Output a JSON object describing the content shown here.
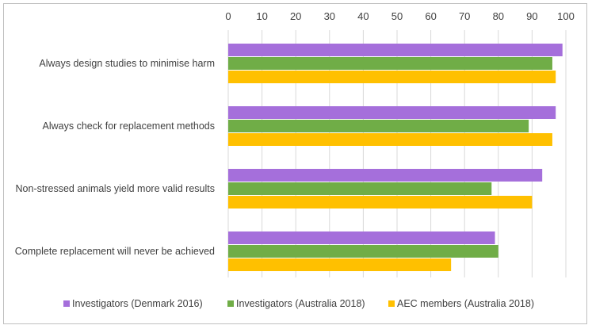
{
  "chart_data": {
    "type": "bar",
    "orientation": "horizontal",
    "categories": [
      "Always design studies to minimise harm",
      "Always check for replacement methods",
      "Non-stressed animals yield more valid results",
      "Complete replacement will never be achieved"
    ],
    "series": [
      {
        "name": "Investigators (Denmark 2016)",
        "color": "#a56fdb",
        "values": [
          99,
          97,
          93,
          79
        ]
      },
      {
        "name": "Investigators (Australia 2018)",
        "color": "#70ad47",
        "values": [
          96,
          89,
          78,
          80
        ]
      },
      {
        "name": "AEC members (Australia 2018)",
        "color": "#ffc000",
        "values": [
          97,
          96,
          90,
          66
        ]
      }
    ],
    "xlim": [
      0,
      100
    ],
    "xticks": [
      "0",
      "10",
      "20",
      "30",
      "40",
      "50",
      "60",
      "70",
      "80",
      "90",
      "100"
    ],
    "x_axis_position": "top",
    "grid": "vertical",
    "legend_position": "bottom"
  }
}
